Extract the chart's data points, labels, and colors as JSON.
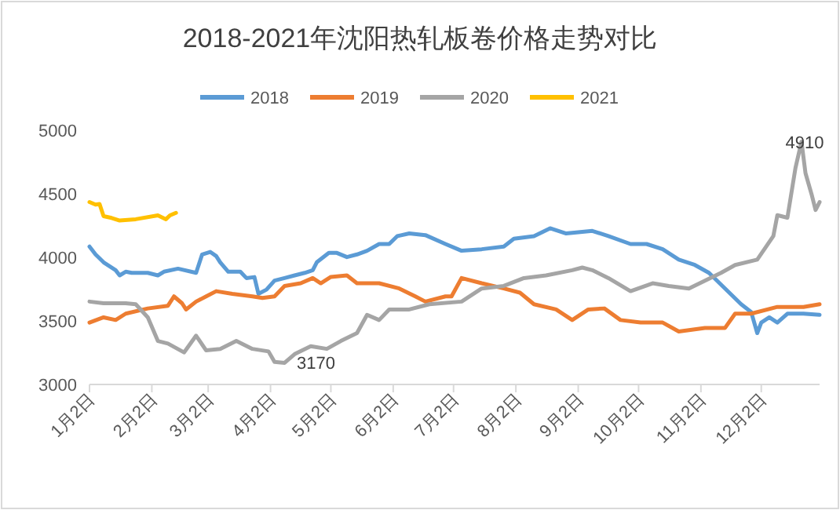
{
  "chart_data": {
    "type": "line",
    "title": "2018-2021年沈阳热轧板卷价格走势对比",
    "xlim": [
      "--01-02",
      "--12-31"
    ],
    "xticks": [
      {
        "value": "--01-02",
        "label": "1月2日"
      },
      {
        "value": "--02-02",
        "label": "2月2日"
      },
      {
        "value": "--03-02",
        "label": "3月2日"
      },
      {
        "value": "--04-02",
        "label": "4月2日"
      },
      {
        "value": "--05-02",
        "label": "5月2日"
      },
      {
        "value": "--06-02",
        "label": "6月2日"
      },
      {
        "value": "--07-02",
        "label": "7月2日"
      },
      {
        "value": "--08-02",
        "label": "8月2日"
      },
      {
        "value": "--09-02",
        "label": "9月2日"
      },
      {
        "value": "--10-02",
        "label": "10月2日"
      },
      {
        "value": "--11-02",
        "label": "11月2日"
      },
      {
        "value": "--12-02",
        "label": "12月2日"
      }
    ],
    "ylim": [
      3000,
      5000
    ],
    "yticks": [
      3000,
      3500,
      4000,
      4500,
      5000
    ],
    "legend": "top",
    "grid": false,
    "series": [
      {
        "name": "2018",
        "color": "#5b9bd5",
        "x": [
          "--01-02",
          "--01-05",
          "--01-09",
          "--01-15",
          "--01-17",
          "--01-20",
          "--01-23",
          "--01-31",
          "--02-05",
          "--02-08",
          "--02-15",
          "--02-24",
          "--02-27",
          "--03-03",
          "--03-06",
          "--03-08",
          "--03-12",
          "--03-18",
          "--03-21",
          "--03-25",
          "--03-27",
          "--03-31",
          "--04-04",
          "--04-09",
          "--04-14",
          "--04-19",
          "--04-23",
          "--04-25",
          "--05-01",
          "--05-05",
          "--05-10",
          "--05-15",
          "--05-20",
          "--05-26",
          "--05-31",
          "--06-04",
          "--06-10",
          "--06-18",
          "--06-28",
          "--07-06",
          "--07-16",
          "--07-27",
          "--08-01",
          "--08-11",
          "--08-19",
          "--08-27",
          "--09-09",
          "--09-17",
          "--09-28",
          "--10-06",
          "--10-14",
          "--10-22",
          "--10-30",
          "--11-06",
          "--11-14",
          "--11-22",
          "--11-27",
          "--11-30",
          "--12-02",
          "--12-06",
          "--12-10",
          "--12-15",
          "--12-23",
          "--12-31"
        ],
        "values": [
          4085,
          4023,
          3961,
          3899,
          3858,
          3887,
          3878,
          3878,
          3858,
          3887,
          3911,
          3878,
          4023,
          4043,
          4010,
          3961,
          3887,
          3887,
          3837,
          3845,
          3713,
          3746,
          3817,
          3837,
          3858,
          3878,
          3899,
          3961,
          4035,
          4035,
          4002,
          4023,
          4052,
          4105,
          4105,
          4167,
          4188,
          4175,
          4105,
          4052,
          4064,
          4085,
          4146,
          4167,
          4229,
          4188,
          4208,
          4167,
          4105,
          4105,
          4064,
          3982,
          3940,
          3878,
          3755,
          3631,
          3569,
          3404,
          3487,
          3528,
          3487,
          3557,
          3557,
          3548
        ]
      },
      {
        "name": "2019",
        "color": "#ed7d31",
        "x": [
          "--01-02",
          "--01-09",
          "--01-15",
          "--01-20",
          "--01-31",
          "--02-10",
          "--02-13",
          "--02-17",
          "--02-19",
          "--02-24",
          "--03-01",
          "--03-06",
          "--03-14",
          "--03-24",
          "--03-29",
          "--04-04",
          "--04-09",
          "--04-17",
          "--04-23",
          "--04-27",
          "--05-02",
          "--05-10",
          "--05-15",
          "--05-26",
          "--06-05",
          "--06-13",
          "--06-18",
          "--06-28",
          "--07-01",
          "--07-06",
          "--07-16",
          "--07-27",
          "--08-04",
          "--08-11",
          "--08-22",
          "--08-30",
          "--09-07",
          "--09-15",
          "--09-23",
          "--10-03",
          "--10-14",
          "--10-22",
          "--11-04",
          "--11-14",
          "--11-19",
          "--11-27",
          "--12-10",
          "--12-23",
          "--12-31"
        ],
        "values": [
          3487,
          3528,
          3507,
          3557,
          3598,
          3619,
          3693,
          3639,
          3590,
          3652,
          3693,
          3734,
          3713,
          3693,
          3680,
          3693,
          3775,
          3796,
          3837,
          3796,
          3846,
          3858,
          3796,
          3796,
          3755,
          3693,
          3652,
          3693,
          3693,
          3837,
          3796,
          3755,
          3722,
          3631,
          3590,
          3507,
          3590,
          3598,
          3507,
          3487,
          3487,
          3417,
          3445,
          3445,
          3557,
          3557,
          3610,
          3610,
          3631
        ]
      },
      {
        "name": "2020",
        "color": "#a5a5a5",
        "x": [
          "--01-02",
          "--01-09",
          "--01-20",
          "--01-25",
          "--01-31",
          "--02-05",
          "--02-10",
          "--02-18",
          "--02-24",
          "--03-01",
          "--03-08",
          "--03-16",
          "--03-24",
          "--04-01",
          "--04-04",
          "--04-09",
          "--04-14",
          "--04-22",
          "--04-30",
          "--05-07",
          "--05-15",
          "--05-20",
          "--05-26",
          "--05-31",
          "--06-10",
          "--06-20",
          "--07-06",
          "--07-16",
          "--07-27",
          "--08-06",
          "--08-17",
          "--08-30",
          "--09-04",
          "--09-09",
          "--09-17",
          "--09-28",
          "--10-09",
          "--10-17",
          "--10-27",
          "--11-04",
          "--11-12",
          "--11-19",
          "--11-30",
          "--12-08",
          "--12-10",
          "--12-15",
          "--12-19",
          "--12-22",
          "--12-24",
          "--12-27",
          "--12-29",
          "--12-31"
        ],
        "values": [
          3652,
          3639,
          3639,
          3631,
          3528,
          3342,
          3322,
          3252,
          3384,
          3268,
          3280,
          3342,
          3280,
          3260,
          3177,
          3170,
          3239,
          3301,
          3280,
          3342,
          3404,
          3548,
          3507,
          3590,
          3590,
          3631,
          3652,
          3755,
          3775,
          3837,
          3858,
          3899,
          3920,
          3899,
          3837,
          3734,
          3796,
          3775,
          3755,
          3817,
          3878,
          3940,
          3982,
          4167,
          4332,
          4312,
          4703,
          4910,
          4662,
          4497,
          4373,
          4435
        ]
      },
      {
        "name": "2021",
        "color": "#ffc000",
        "x": [
          "--01-02",
          "--01-05",
          "--01-07",
          "--01-09",
          "--01-13",
          "--01-17",
          "--01-25",
          "--02-05",
          "--02-09",
          "--02-11",
          "--02-14"
        ],
        "values": [
          4435,
          4415,
          4420,
          4324,
          4310,
          4290,
          4300,
          4330,
          4300,
          4330,
          4350
        ]
      }
    ],
    "annotations": [
      {
        "text": "4910",
        "x": "--12-22",
        "y": 4910
      },
      {
        "text": "3170",
        "x": "--04-09",
        "y": 3170
      }
    ]
  }
}
